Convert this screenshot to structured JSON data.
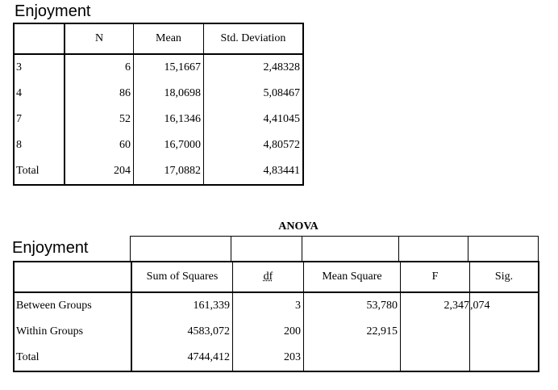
{
  "descriptives": {
    "title": "Enjoyment",
    "headers": [
      "",
      "N",
      "Mean",
      "Std. Deviation"
    ],
    "rows": [
      {
        "label": "3",
        "n": "6",
        "mean": "15,1667",
        "sd": "2,48328"
      },
      {
        "label": "4",
        "n": "86",
        "mean": "18,0698",
        "sd": "5,08467"
      },
      {
        "label": "7",
        "n": "52",
        "mean": "16,1346",
        "sd": "4,41045"
      },
      {
        "label": "8",
        "n": "60",
        "mean": "16,7000",
        "sd": "4,80572"
      },
      {
        "label": "Total",
        "n": "204",
        "mean": "17,0882",
        "sd": "4,83441"
      }
    ]
  },
  "anova": {
    "caption": "ANOVA",
    "title": "Enjoyment",
    "headers": [
      "",
      "Sum of Squares",
      "df",
      "Mean Square",
      "F",
      "Sig."
    ],
    "rows": [
      {
        "label": "Between Groups",
        "ss": "161,339",
        "df": "3",
        "ms": "53,780",
        "f": "2,347",
        "sig": ",074"
      },
      {
        "label": "Within Groups",
        "ss": "4583,072",
        "df": "200",
        "ms": "22,915",
        "f": "",
        "sig": ""
      },
      {
        "label": "Total",
        "ss": "4744,412",
        "df": "203",
        "ms": "",
        "f": "",
        "sig": ""
      }
    ]
  }
}
